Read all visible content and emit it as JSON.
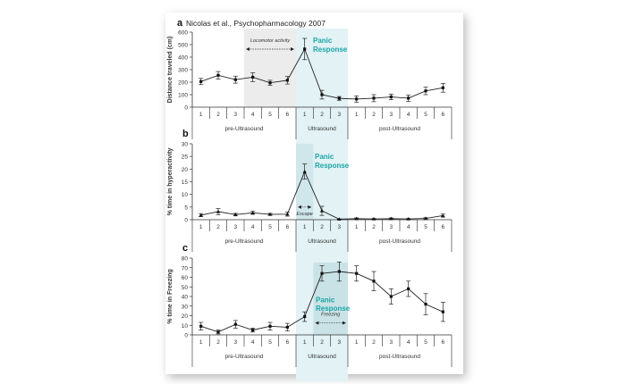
{
  "figure": {
    "citation": "Nicolas et al., Psychopharmacology 2007",
    "accent_color": "#1aa5a5",
    "shade_color": "#e2f2f5",
    "grey_shade": "#ececec"
  },
  "chart_data": [
    {
      "panel": "a",
      "type": "line",
      "ylabel": "Distance traveled (cm)",
      "ylim": [
        0,
        600
      ],
      "yticks": [
        0,
        100,
        200,
        300,
        400,
        500,
        600
      ],
      "groups": [
        "pre-Ultrasound",
        "Ultrasound",
        "post-Ultrasound"
      ],
      "categories": [
        "1",
        "2",
        "3",
        "4",
        "5",
        "6",
        "1",
        "2",
        "3",
        "1",
        "2",
        "3",
        "4",
        "5",
        "6"
      ],
      "values": [
        205,
        255,
        220,
        240,
        195,
        215,
        465,
        100,
        70,
        65,
        72,
        82,
        72,
        130,
        155
      ],
      "errors": [
        25,
        30,
        28,
        35,
        20,
        30,
        85,
        35,
        15,
        25,
        28,
        22,
        25,
        30,
        35
      ],
      "annotations": [
        "Locomotor activity",
        "Panic Response"
      ]
    },
    {
      "panel": "b",
      "type": "line",
      "ylabel": "% time in hyperactivity",
      "ylim": [
        0,
        30
      ],
      "yticks": [
        0,
        5,
        10,
        15,
        20,
        25,
        30
      ],
      "groups": [
        "pre-Ultrasound",
        "Ultrasound",
        "post-Ultrasound"
      ],
      "categories": [
        "1",
        "2",
        "3",
        "4",
        "5",
        "6",
        "1",
        "2",
        "3",
        "1",
        "2",
        "3",
        "4",
        "5",
        "6"
      ],
      "values": [
        1.8,
        3.2,
        2.0,
        2.7,
        2.1,
        2.2,
        19.0,
        3.5,
        0.2,
        0.4,
        0.3,
        0.4,
        0.3,
        0.5,
        1.6
      ],
      "errors": [
        0.6,
        1.2,
        0.5,
        0.6,
        0.4,
        0.8,
        3.0,
        1.8,
        0.1,
        0.3,
        0.2,
        0.3,
        0.2,
        0.3,
        0.6
      ],
      "annotations": [
        "Escape",
        "Panic Response"
      ]
    },
    {
      "panel": "c",
      "type": "line",
      "ylabel": "% time in Freezing",
      "ylim": [
        0,
        80
      ],
      "yticks": [
        0,
        10,
        20,
        30,
        40,
        50,
        60,
        70,
        80
      ],
      "groups": [
        "pre-Ultrasound",
        "Ultrasound",
        "post-Ultrasound"
      ],
      "categories": [
        "1",
        "2",
        "3",
        "4",
        "5",
        "6",
        "1",
        "2",
        "3",
        "1",
        "2",
        "3",
        "4",
        "5",
        "6"
      ],
      "values": [
        9,
        3,
        11,
        5,
        9,
        8,
        19,
        64,
        66,
        64,
        56,
        40,
        48,
        32,
        24
      ],
      "errors": [
        4,
        2,
        4,
        2,
        4,
        4,
        5,
        8,
        10,
        8,
        10,
        8,
        8,
        11,
        10
      ],
      "annotations": [
        "Freezing",
        "Panic Response"
      ]
    }
  ]
}
